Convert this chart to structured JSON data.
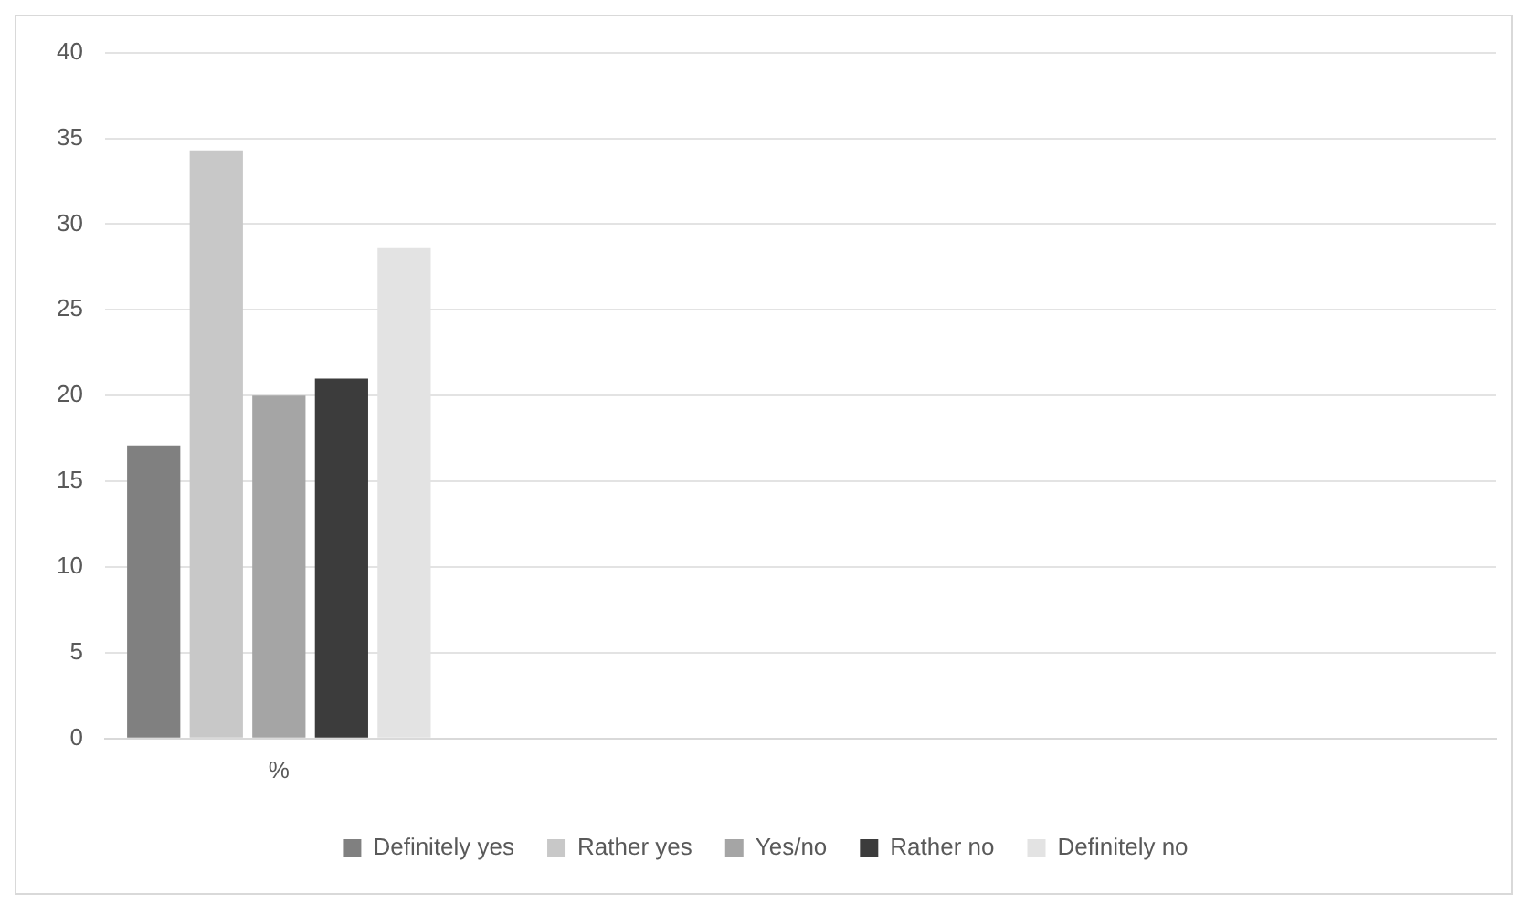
{
  "chart_data": {
    "type": "bar",
    "categories": [
      "%",
      null,
      null,
      null
    ],
    "series": [
      {
        "name": "Definitely yes",
        "color": "#808080",
        "values": [
          17.1,
          null,
          null,
          null
        ]
      },
      {
        "name": "Rather yes",
        "color": "#c8c8c8",
        "values": [
          34.3,
          null,
          null,
          null
        ]
      },
      {
        "name": "Yes/no",
        "color": "#a5a5a5",
        "values": [
          20.0,
          null,
          null,
          null
        ]
      },
      {
        "name": "Rather no",
        "color": "#3c3c3c",
        "values": [
          21.0,
          null,
          null,
          null
        ]
      },
      {
        "name": "Definitely no",
        "color": "#e3e3e3",
        "values": [
          28.6,
          null,
          null,
          null
        ]
      }
    ],
    "ylim": [
      0,
      40
    ],
    "yticks": [
      0,
      5,
      10,
      15,
      20,
      25,
      30,
      35,
      40
    ],
    "grid": "y",
    "legend": "bottom"
  }
}
